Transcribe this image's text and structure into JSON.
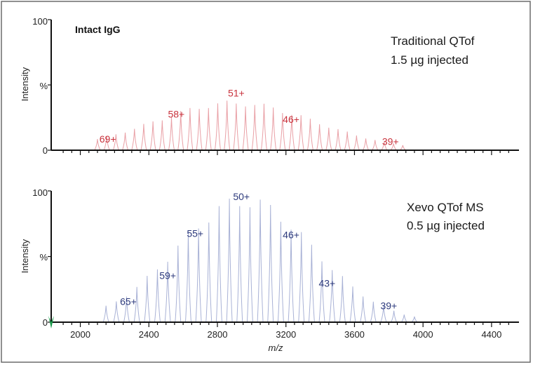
{
  "chart_data": [
    {
      "type": "line",
      "title": "Intact IgG",
      "ylabel_primary": "Intensity",
      "ylabel_secondary": "%",
      "ylim": [
        0,
        100
      ],
      "yticks": [
        "0",
        "%",
        "100"
      ],
      "xlim": [
        1830,
        4560
      ],
      "caption": [
        "Traditional QTof",
        "1.5 µg injected"
      ],
      "color": "#c8323c",
      "peak_color": "#e9a0a6",
      "charge_states": [
        {
          "label": "69+",
          "mz": 2160,
          "intensity": 6
        },
        {
          "label": "58+",
          "mz": 2560,
          "intensity": 25
        },
        {
          "label": "51+",
          "mz": 2910,
          "intensity": 41
        },
        {
          "label": "46+",
          "mz": 3230,
          "intensity": 21
        },
        {
          "label": "39+",
          "mz": 3810,
          "intensity": 4
        }
      ],
      "envelope": {
        "center": 2900,
        "width": 470,
        "peak": 36,
        "start": 2100,
        "end": 3900,
        "step_mz": 54
      }
    },
    {
      "type": "line",
      "title": "",
      "ylabel_primary": "Intensity",
      "ylabel_secondary": "%",
      "ylim": [
        0,
        100
      ],
      "yticks": [
        "0",
        "%",
        "100"
      ],
      "xlim": [
        1830,
        4560
      ],
      "xticks": [
        2000,
        2400,
        2800,
        3200,
        3600,
        4000,
        4400
      ],
      "xlabel": "m/z",
      "caption": [
        "Xevo QTof MS",
        "0.5 µg injected"
      ],
      "color": "#2d3a7c",
      "peak_color": "#a9b2d6",
      "charge_states": [
        {
          "label": "65+",
          "mz": 2280,
          "intensity": 13
        },
        {
          "label": "59+",
          "mz": 2510,
          "intensity": 33
        },
        {
          "label": "55+",
          "mz": 2670,
          "intensity": 65
        },
        {
          "label": "50+",
          "mz": 2940,
          "intensity": 93
        },
        {
          "label": "46+",
          "mz": 3230,
          "intensity": 64
        },
        {
          "label": "43+",
          "mz": 3440,
          "intensity": 27
        },
        {
          "label": "39+",
          "mz": 3800,
          "intensity": 10
        }
      ],
      "envelope": {
        "center": 2960,
        "width": 400,
        "peak": 92,
        "start": 2150,
        "end": 4000,
        "step_mz": 60
      }
    }
  ]
}
